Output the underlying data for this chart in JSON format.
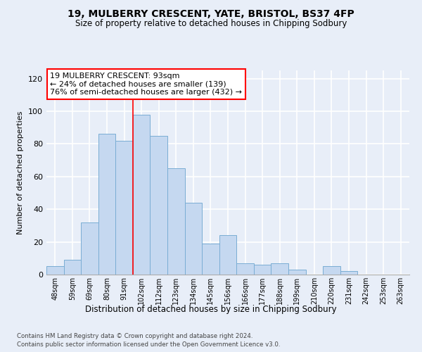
{
  "title": "19, MULBERRY CRESCENT, YATE, BRISTOL, BS37 4FP",
  "subtitle": "Size of property relative to detached houses in Chipping Sodbury",
  "xlabel": "Distribution of detached houses by size in Chipping Sodbury",
  "ylabel": "Number of detached properties",
  "footnote1": "Contains HM Land Registry data © Crown copyright and database right 2024.",
  "footnote2": "Contains public sector information licensed under the Open Government Licence v3.0.",
  "annotation_title": "19 MULBERRY CRESCENT: 93sqm",
  "annotation_line1": "← 24% of detached houses are smaller (139)",
  "annotation_line2": "76% of semi-detached houses are larger (432) →",
  "bar_labels": [
    "48sqm",
    "59sqm",
    "69sqm",
    "80sqm",
    "91sqm",
    "102sqm",
    "112sqm",
    "123sqm",
    "134sqm",
    "145sqm",
    "156sqm",
    "166sqm",
    "177sqm",
    "188sqm",
    "199sqm",
    "210sqm",
    "220sqm",
    "231sqm",
    "242sqm",
    "253sqm",
    "263sqm"
  ],
  "bar_values": [
    5,
    9,
    32,
    86,
    82,
    98,
    85,
    65,
    44,
    19,
    24,
    7,
    6,
    7,
    3,
    0,
    5,
    2,
    0,
    0,
    0
  ],
  "bar_color": "#c5d8f0",
  "bar_edge_color": "#7aadd4",
  "redline_x": 4.5,
  "ylim": [
    0,
    125
  ],
  "yticks": [
    0,
    20,
    40,
    60,
    80,
    100,
    120
  ],
  "bg_color": "#e8eef8"
}
